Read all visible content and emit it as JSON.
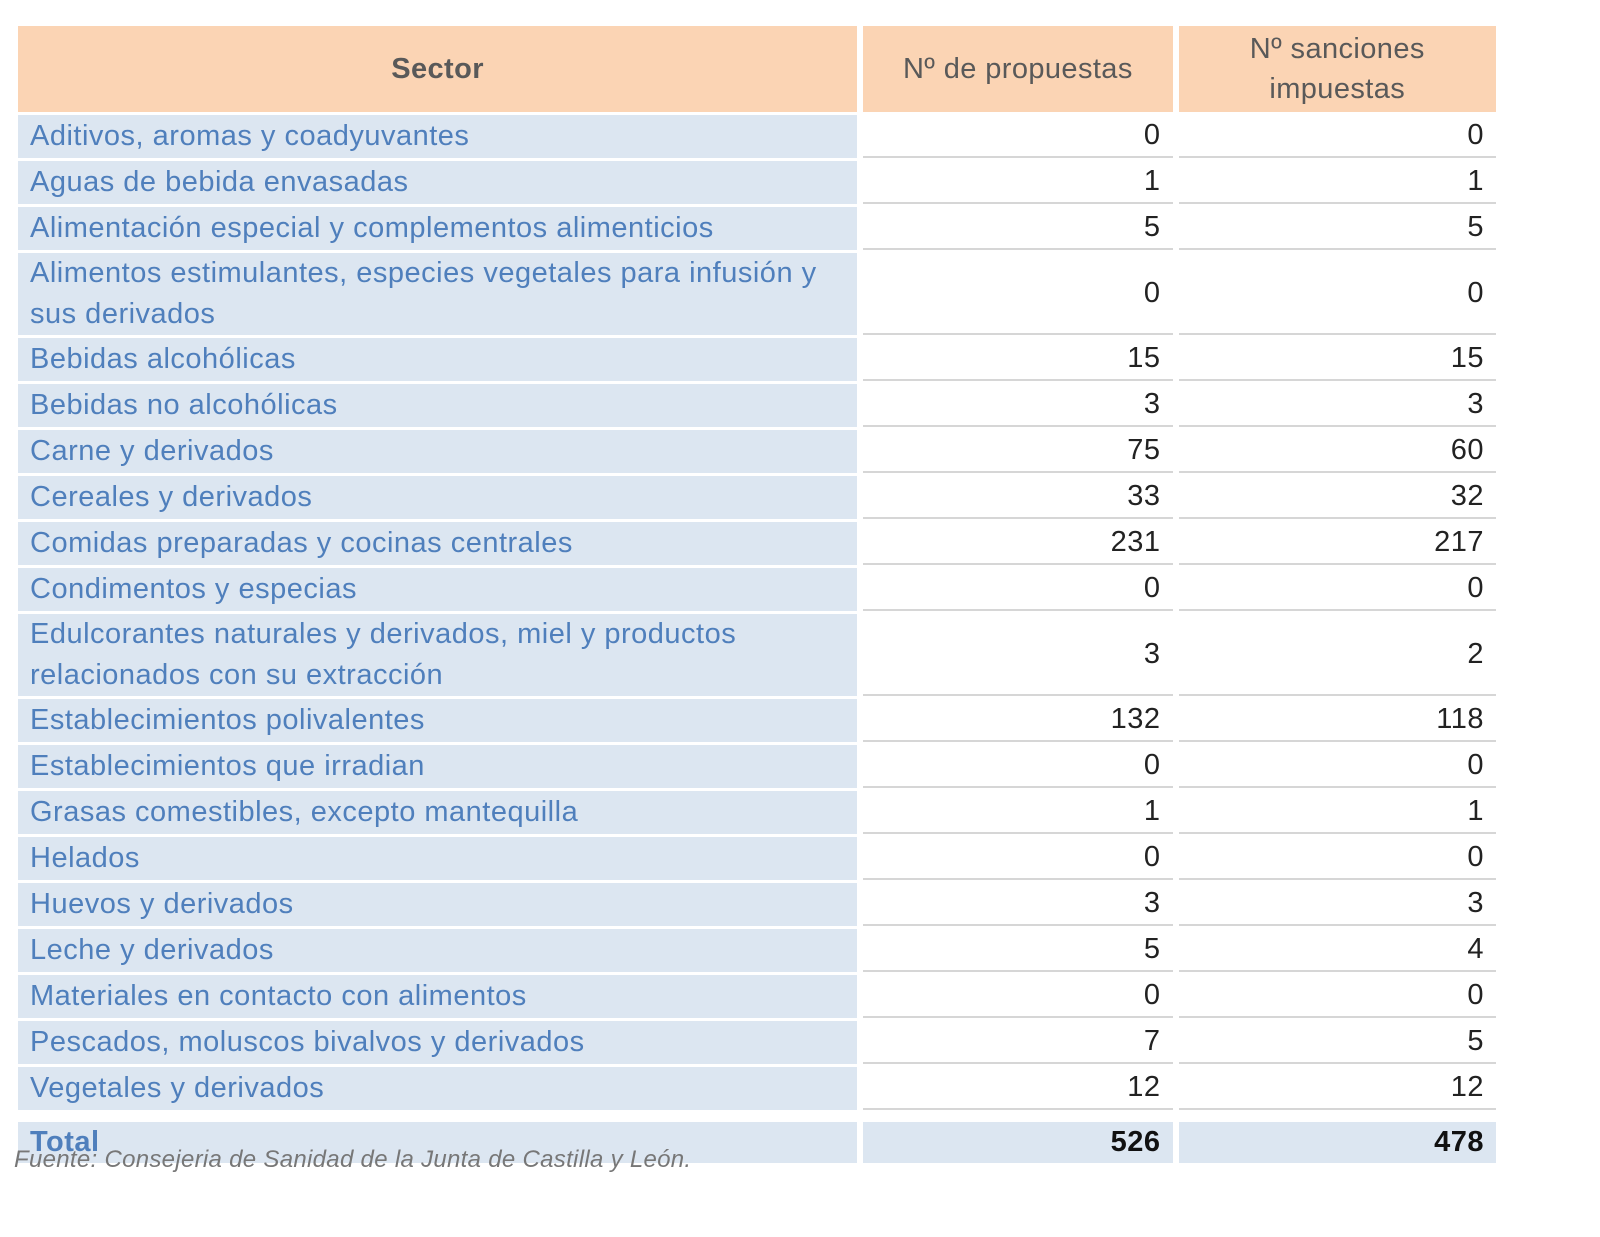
{
  "table": {
    "header": [
      "Sector",
      "Nº de propuestas",
      "Nº sanciones impuestas"
    ],
    "rows": [
      [
        "Aditivos, aromas y coadyuvantes",
        0,
        0
      ],
      [
        "Aguas de bebida envasadas",
        1,
        1
      ],
      [
        "Alimentación especial y complementos alimenticios",
        5,
        5
      ],
      [
        "Alimentos estimulantes, especies vegetales para infusión y sus derivados",
        0,
        0
      ],
      [
        "Bebidas alcohólicas",
        15,
        15
      ],
      [
        "Bebidas no alcohólicas",
        3,
        3
      ],
      [
        "Carne y derivados",
        75,
        60
      ],
      [
        "Cereales y derivados",
        33,
        32
      ],
      [
        "Comidas preparadas y cocinas centrales",
        231,
        217
      ],
      [
        "Condimentos y especias",
        0,
        0
      ],
      [
        "Edulcorantes naturales y derivados, miel y productos relacionados con su extracción",
        3,
        2
      ],
      [
        "Establecimientos polivalentes",
        132,
        118
      ],
      [
        "Establecimientos que irradian",
        0,
        0
      ],
      [
        "Grasas comestibles, excepto mantequilla",
        1,
        1
      ],
      [
        "Helados",
        0,
        0
      ],
      [
        "Huevos y derivados",
        3,
        3
      ],
      [
        "Leche y derivados",
        5,
        4
      ],
      [
        "Materiales en contacto con alimentos",
        0,
        0
      ],
      [
        "Pescados, moluscos bivalvos y derivados",
        7,
        5
      ],
      [
        "Vegetales y derivados",
        12,
        12
      ]
    ],
    "total": [
      "Total",
      526,
      478
    ]
  },
  "source": "Fuente: Consejeria de Sanidad de la Junta de Castilla y León."
}
